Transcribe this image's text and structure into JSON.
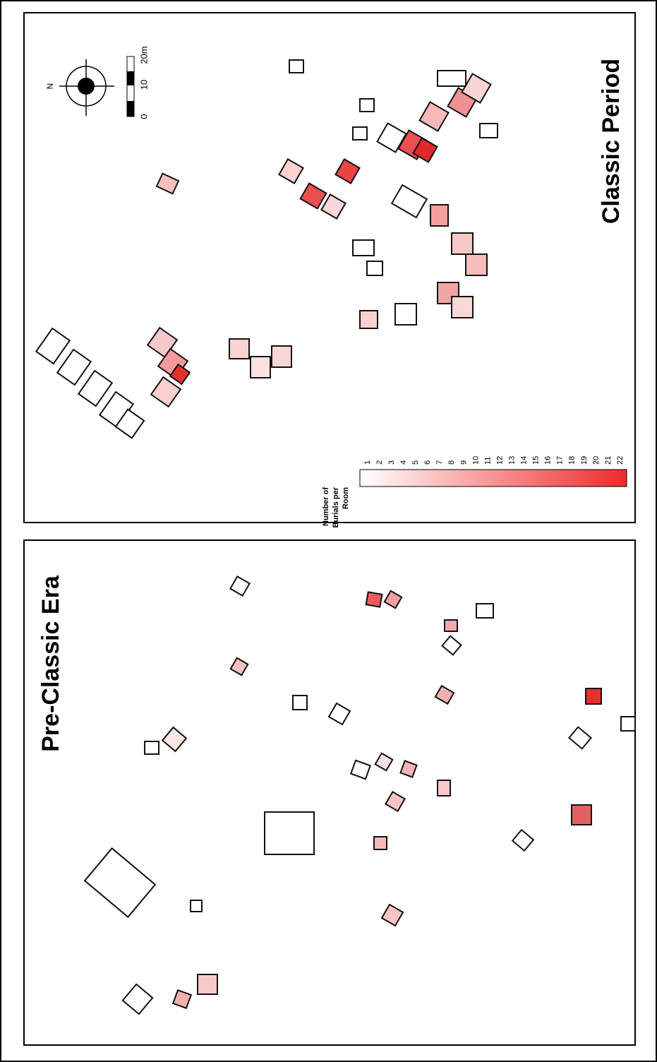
{
  "panels": [
    {
      "title": "Classic Period"
    },
    {
      "title": "Pre-Classic Era"
    }
  ],
  "legend": {
    "title_lines": [
      "Number of",
      "Burials per",
      "Room"
    ],
    "labels": [
      1,
      2,
      3,
      4,
      5,
      6,
      7,
      8,
      9,
      10,
      11,
      12,
      13,
      14,
      15,
      16,
      17,
      18,
      19,
      20,
      21,
      22
    ]
  },
  "scale": {
    "labels": [
      "0",
      "10",
      "20m"
    ]
  },
  "north": "N"
}
